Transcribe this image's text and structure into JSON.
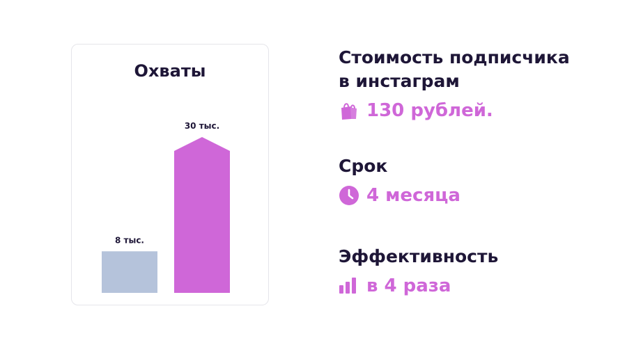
{
  "colors": {
    "accent": "#cf67d8",
    "muted_bar": "#b5c3db",
    "text_dark": "#1e1637"
  },
  "chart_data": {
    "type": "bar",
    "title": "Охваты",
    "categories": [
      "",
      ""
    ],
    "values": [
      8,
      30
    ],
    "data_labels": [
      "8 тыс.",
      "30 тыс."
    ],
    "ylim": [
      0,
      32
    ],
    "grid": false,
    "legend": "none",
    "bar_colors": [
      "#b5c3db",
      "#cf67d8"
    ],
    "bar_shapes": [
      "rect",
      "arrow-up"
    ]
  },
  "stats": [
    {
      "heading": "Стоимость подписчика\nв инстаграм",
      "value": "130 рублей.",
      "icon": "shopping-bags-icon"
    },
    {
      "heading": "Срок",
      "value": "4 месяца",
      "icon": "clock-icon"
    },
    {
      "heading": "Эффективность",
      "value": "в 4 раза",
      "icon": "bar-chart-icon"
    }
  ]
}
